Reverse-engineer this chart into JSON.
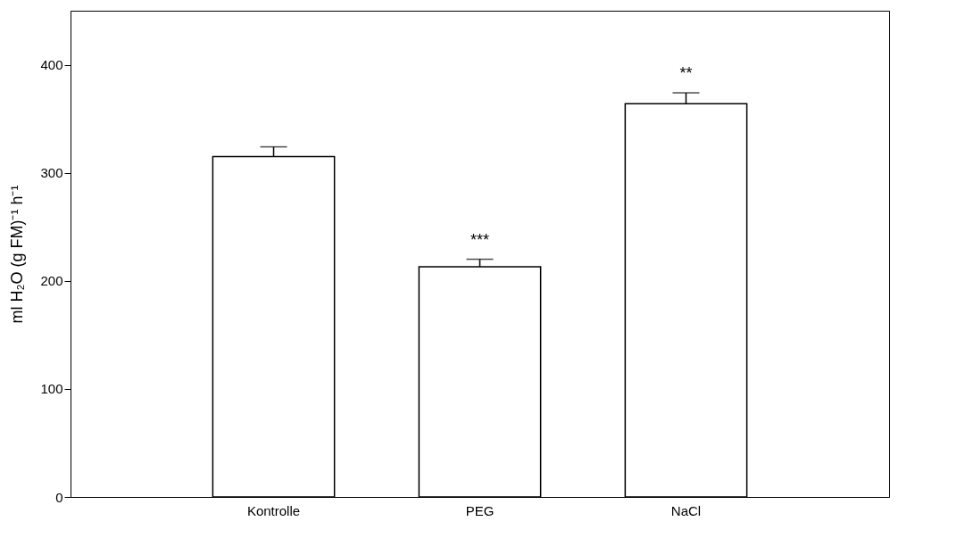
{
  "chart_data": {
    "type": "bar",
    "ylabel": "ml H₂O (g FM)⁻¹ h⁻¹",
    "categories": [
      "Kontrolle",
      "PEG",
      "NaCl"
    ],
    "values": [
      315,
      213,
      364
    ],
    "colors": [
      "#ffffff",
      "#ffffff",
      "#ffffff"
    ],
    "errors": [
      [
        315,
        324
      ],
      [
        213,
        220
      ],
      [
        364,
        374
      ]
    ],
    "ylim": [
      0,
      450
    ],
    "yticks": [
      0,
      100,
      200,
      300,
      400
    ],
    "grid": false,
    "annotations": [
      "***",
      "**"
    ]
  }
}
